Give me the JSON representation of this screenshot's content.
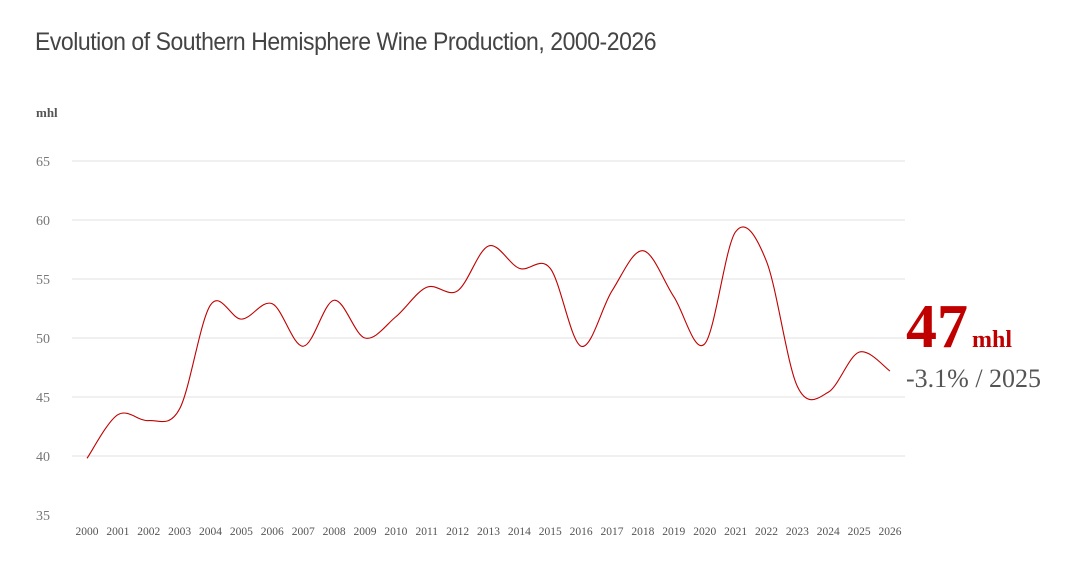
{
  "title": "Evolution of Southern Hemisphere Wine Production, 2000-2026",
  "callout": {
    "value": "47",
    "unit": "mhl",
    "change": "-3.1% / 2025"
  },
  "colors": {
    "line": "#c00000",
    "grid": "#e2e2e2",
    "callout": "#c00000"
  },
  "chart_data": {
    "type": "line",
    "ylabel": "mhl",
    "xlabel": "",
    "ylim": [
      35,
      65
    ],
    "yticks": [
      35,
      40,
      45,
      50,
      55,
      60,
      65
    ],
    "grid": true,
    "categories": [
      "2000",
      "2001",
      "2002",
      "2003",
      "2004",
      "2005",
      "2006",
      "2007",
      "2008",
      "2009",
      "2010",
      "2011",
      "2012",
      "2013",
      "2014",
      "2015",
      "2016",
      "2017",
      "2018",
      "2019",
      "2020",
      "2021",
      "2022",
      "2023",
      "2024",
      "2025",
      "2026"
    ],
    "series": [
      {
        "values": [
          39.8,
          43.5,
          43.0,
          44.0,
          52.8,
          51.6,
          52.9,
          49.3,
          53.2,
          50.0,
          51.8,
          54.3,
          54.0,
          57.8,
          55.9,
          55.9,
          49.3,
          54.0,
          57.4,
          53.5,
          49.5,
          59.0,
          56.5,
          45.9,
          45.4,
          48.8,
          47.2
        ]
      }
    ]
  }
}
